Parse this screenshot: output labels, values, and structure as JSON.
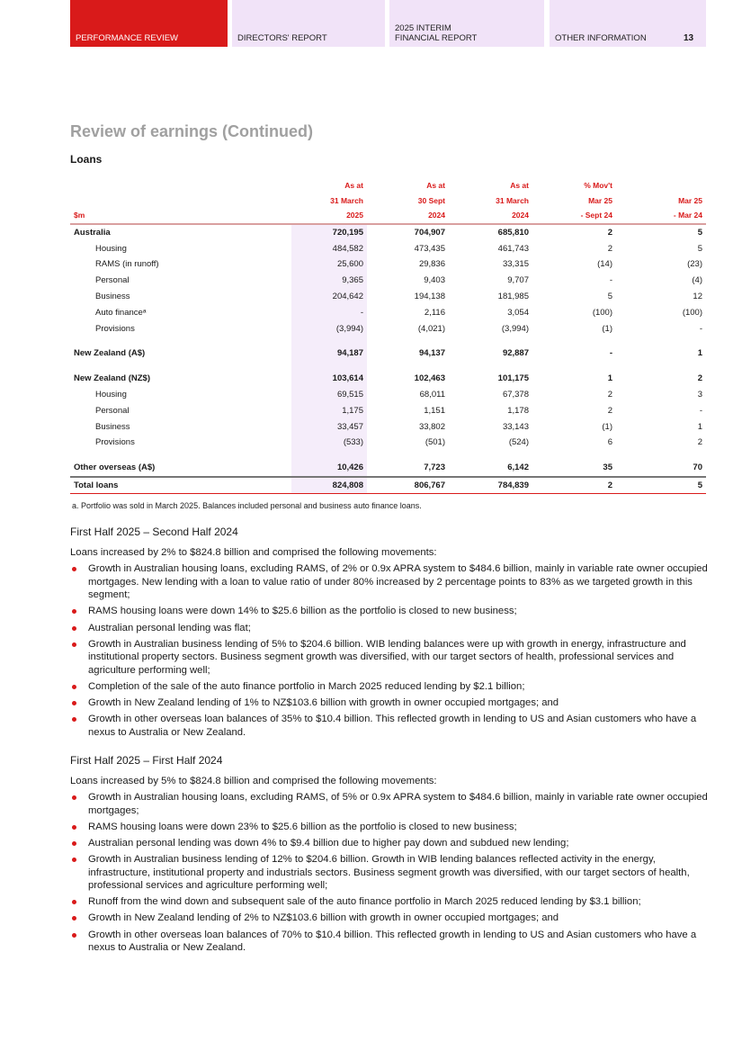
{
  "header": {
    "tabs": [
      "PERFORMANCE REVIEW",
      "DIRECTORS' REPORT",
      "2025 INTERIM\nFINANCIAL REPORT",
      "OTHER INFORMATION"
    ],
    "page_number": "13",
    "accent_color": "#d91a1a"
  },
  "title": "Review of earnings (Continued)",
  "section": "Loans",
  "table": {
    "head": [
      [
        "",
        "As at",
        "As at",
        "As at",
        "% Mov't",
        ""
      ],
      [
        "",
        "31 March",
        "30 Sept",
        "31 March",
        "Mar 25",
        "Mar 25"
      ],
      [
        "$m",
        "2025",
        "2024",
        "2024",
        "- Sept 24",
        "- Mar 24"
      ]
    ],
    "rows": [
      [
        "Australia",
        "720,195",
        "704,907",
        "685,810",
        "2",
        "5"
      ],
      [
        "Housing",
        "484,582",
        "473,435",
        "461,743",
        "2",
        "5"
      ],
      [
        "RAMS (in runoff)",
        "25,600",
        "29,836",
        "33,315",
        "(14)",
        "(23)"
      ],
      [
        "Personal",
        "9,365",
        "9,403",
        "9,707",
        "-",
        "(4)"
      ],
      [
        "Business",
        "204,642",
        "194,138",
        "181,985",
        "5",
        "12"
      ],
      [
        "Auto financeᵃ",
        "-",
        "2,116",
        "3,054",
        "(100)",
        "(100)"
      ],
      [
        "Provisions",
        "(3,994)",
        "(4,021)",
        "(3,994)",
        "(1)",
        "-"
      ],
      [
        "New Zealand (A$)",
        "94,187",
        "94,137",
        "92,887",
        "-",
        "1"
      ],
      [
        "New Zealand (NZ$)",
        "103,614",
        "102,463",
        "101,175",
        "1",
        "2"
      ],
      [
        "Housing",
        "69,515",
        "68,011",
        "67,378",
        "2",
        "3"
      ],
      [
        "Personal",
        "1,175",
        "1,151",
        "1,178",
        "2",
        "-"
      ],
      [
        "Business",
        "33,457",
        "33,802",
        "33,143",
        "(1)",
        "1"
      ],
      [
        "Provisions",
        "(533)",
        "(501)",
        "(524)",
        "6",
        "2"
      ],
      [
        "Other overseas (A$)",
        "10,426",
        "7,723",
        "6,142",
        "35",
        "70"
      ],
      [
        "Total loans",
        "824,808",
        "806,767",
        "784,839",
        "2",
        "5"
      ]
    ]
  },
  "footnote": "a.   Portfolio was sold in March 2025. Balances included personal and business auto finance loans.",
  "sections": [
    {
      "heading": "First Half 2025 – Second Half 2024",
      "intro": "Loans increased by 2% to $824.8 billion and comprised the following movements:",
      "bullets": [
        "Growth in Australian housing loans, excluding RAMS, of 2% or 0.9x APRA system to $484.6 billion, mainly in variable rate owner occupied mortgages. New lending with a loan to value ratio of under 80% increased by 2 percentage points to 83% as we targeted growth in this segment;",
        "RAMS housing loans were down 14% to $25.6 billion as the portfolio is closed to new business;",
        "Australian personal lending was flat;",
        "Growth in Australian business lending of 5% to $204.6 billion. WIB lending balances were up with growth in energy, infrastructure and institutional property sectors. Business segment growth was diversified, with our target sectors of health, professional services and agriculture performing well;",
        "Completion of the sale of the auto finance portfolio in March 2025 reduced lending by $2.1 billion;",
        "Growth in New Zealand lending of 1% to NZ$103.6 billion with growth in owner occupied mortgages; and",
        "Growth in other overseas loan balances of 35% to $10.4 billion. This reflected growth in lending to US and Asian customers who have a nexus to Australia or New Zealand."
      ]
    },
    {
      "heading": "First Half 2025 – First Half 2024",
      "intro": "Loans increased by 5% to $824.8 billion and comprised the following movements:",
      "bullets": [
        "Growth in Australian housing loans, excluding RAMS, of 5% or 0.9x APRA system to $484.6 billion, mainly in variable rate owner occupied mortgages;",
        "RAMS housing loans were down 23% to $25.6 billion as the portfolio is closed to new business;",
        "Australian personal lending was down 4% to $9.4 billion due to higher pay down and subdued new lending;",
        "Growth in Australian business lending of 12% to $204.6 billion. Growth in WIB lending balances reflected activity in the energy, infrastructure, institutional property and industrials sectors. Business segment growth was diversified, with our target sectors of health, professional services and agriculture performing well;",
        "Runoff from the wind down and subsequent sale of the auto finance portfolio in March 2025 reduced lending by $3.1 billion;",
        "Growth in New Zealand lending of 2% to NZ$103.6 billion with growth in owner occupied mortgages; and",
        "Growth in other overseas loan balances of 70% to $10.4 billion. This reflected growth in lending to US and Asian customers who have a nexus to Australia or New Zealand."
      ]
    }
  ]
}
